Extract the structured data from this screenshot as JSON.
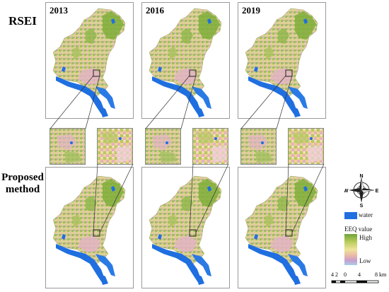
{
  "row_labels": {
    "top": "RSEI",
    "bottom_line1": "Proposed",
    "bottom_line2": "method"
  },
  "years": [
    "2013",
    "2016",
    "2019"
  ],
  "compass": {
    "north": "N",
    "south": "S",
    "east": "E",
    "west": "W"
  },
  "legend": {
    "water_label": "water",
    "title": "EEQ value",
    "high_label": "High",
    "low_label": "Low",
    "colors": {
      "water": "#1f6fe0",
      "high": "#7fae3a",
      "mid": "#e8dd8a",
      "low": "#d9a3c0"
    }
  },
  "scale_bar": {
    "ticks": [
      "4",
      "2",
      "0",
      "4",
      "8"
    ],
    "unit": "km"
  }
}
